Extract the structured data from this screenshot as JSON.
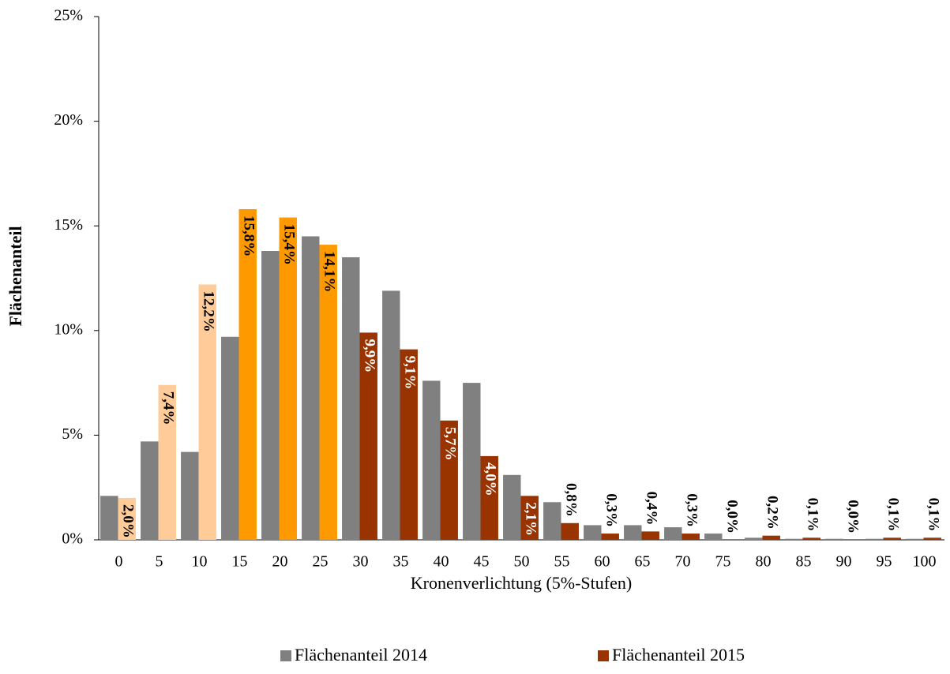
{
  "chart_data": {
    "type": "bar",
    "x_label": "Kronenverlichtung (5%-Stufen)",
    "y_label": "Flächenanteil",
    "categories": [
      "0",
      "5",
      "10",
      "15",
      "20",
      "25",
      "30",
      "35",
      "40",
      "45",
      "50",
      "55",
      "60",
      "65",
      "70",
      "75",
      "80",
      "85",
      "90",
      "95",
      "100"
    ],
    "series": [
      {
        "name": "Flächenanteil 2014",
        "color": "#808080",
        "values": [
          2.1,
          4.7,
          4.2,
          9.7,
          13.8,
          14.5,
          13.5,
          11.9,
          7.6,
          7.5,
          3.1,
          1.8,
          0.7,
          0.7,
          0.6,
          0.3,
          0.1,
          0.05,
          0.05,
          0.05,
          0.05
        ]
      },
      {
        "name": "Flächenanteil 2015",
        "color": "#993300",
        "colors": [
          "#ffcc99",
          "#ffcc99",
          "#ffcc99",
          "#ff9900",
          "#ff9900",
          "#ff9900",
          "#993300",
          "#993300",
          "#993300",
          "#993300",
          "#993300",
          "#993300",
          "#993300",
          "#993300",
          "#993300",
          "#993300",
          "#993300",
          "#993300",
          "#993300",
          "#993300",
          "#993300"
        ],
        "values": [
          2.0,
          7.4,
          12.2,
          15.8,
          15.4,
          14.1,
          9.9,
          9.1,
          5.7,
          4.0,
          2.1,
          0.8,
          0.3,
          0.4,
          0.3,
          0.0,
          0.2,
          0.1,
          0.0,
          0.1,
          0.1
        ],
        "value_labels": [
          "2,0%",
          "7,4%",
          "12,2%",
          "15,8%",
          "15,4%",
          "14,1%",
          "9,9%",
          "9,1%",
          "5,7%",
          "4,0%",
          "2,1%",
          "0,8%",
          "0,3%",
          "0,4%",
          "0,3%",
          "0,0%",
          "0,2%",
          "0,1%",
          "0,0%",
          "0,1%",
          "0,1%"
        ]
      }
    ],
    "ylim": [
      0,
      25
    ],
    "yticks": [
      {
        "value": 0,
        "label": "0%"
      },
      {
        "value": 5,
        "label": "5%"
      },
      {
        "value": 10,
        "label": "10%"
      },
      {
        "value": 15,
        "label": "15%"
      },
      {
        "value": 20,
        "label": "20%"
      },
      {
        "value": 25,
        "label": "25%"
      }
    ],
    "grid": false,
    "legend": "bottom"
  }
}
